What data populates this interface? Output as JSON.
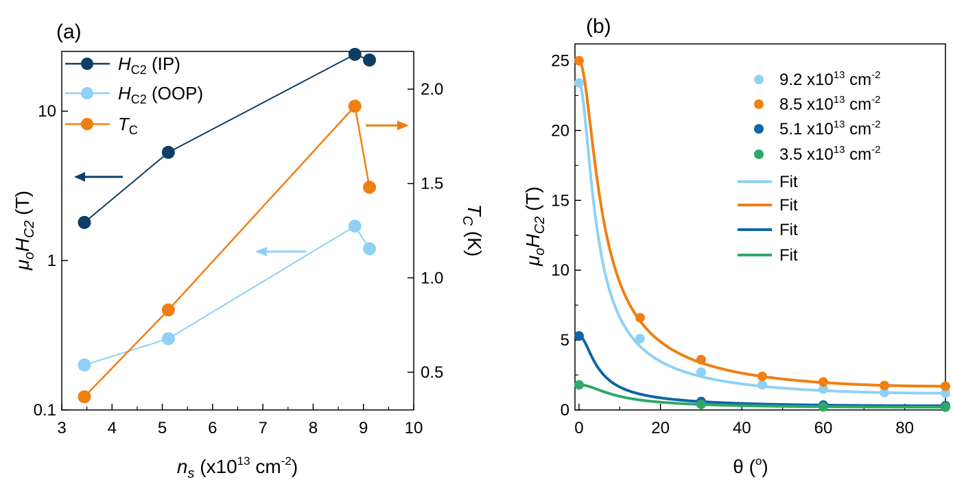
{
  "colors": {
    "ip": "#0e3d66",
    "oop": "#8fd1f5",
    "tc": "#f07f12",
    "light_blue": "#8fd1f5",
    "orange": "#f07f12",
    "blue": "#0f66a5",
    "green": "#2ea86a"
  },
  "chart_data": [
    {
      "panel_label": "(a)",
      "type": "line",
      "xlabel": {
        "sym": "n",
        "sub": "s",
        "pre": " (x10",
        "sup": "13",
        "mid": " cm",
        "sup2": "-2",
        "post": ")"
      },
      "ylabel_left": {
        "mu": "μ",
        "mu_sub": "o",
        "sym": "H",
        "sub": "C2",
        "post": " (T)"
      },
      "ylabel_right": {
        "sym": "T",
        "sub": "C",
        "post": " (K)"
      },
      "xlim": [
        3,
        10
      ],
      "ylim_left": [
        0.1,
        25.12
      ],
      "yscale_left": "log",
      "ylim_right": [
        0.3,
        2.2
      ],
      "x_ticks": [
        "3",
        "4",
        "5",
        "6",
        "7",
        "8",
        "9",
        "10"
      ],
      "y_ticks_left": [
        "0.1",
        "1",
        "10"
      ],
      "y_ticks_right": [
        "0.5",
        "1.0",
        "1.5",
        "2.0"
      ],
      "series": [
        {
          "name": "H_C2 (IP)",
          "legend": {
            "sym": "H",
            "sub": "C2",
            "rest": " (IP)"
          },
          "axis": "left",
          "x": [
            3.45,
            5.12,
            8.83,
            9.12
          ],
          "y": [
            1.8,
            5.3,
            24.0,
            22.0
          ]
        },
        {
          "name": "H_C2 (OOP)",
          "legend": {
            "sym": "H",
            "sub": "C2",
            "rest": " (OOP)"
          },
          "axis": "left",
          "x": [
            3.45,
            5.12,
            8.83,
            9.12
          ],
          "y": [
            0.2,
            0.3,
            1.7,
            1.2
          ]
        },
        {
          "name": "T_C",
          "legend": {
            "sym": "T",
            "sub": "C",
            "rest": ""
          },
          "axis": "right",
          "x": [
            3.45,
            5.12,
            8.83,
            9.12
          ],
          "y": [
            0.37,
            0.83,
            1.91,
            1.48
          ]
        }
      ],
      "annotations": [
        "arrow-left pointing to left axis for H_C2 (IP)",
        "arrow-left pointing to left axis for H_C2 (OOP)",
        "arrow-right pointing to right axis for T_C"
      ]
    },
    {
      "panel_label": "(b)",
      "type": "scatter",
      "xlabel": {
        "sym": "θ",
        "pre": " (",
        "sup": "o",
        "post": ")"
      },
      "ylabel": {
        "mu": "μ",
        "mu_sub": "o",
        "sym": "H",
        "sub": "C2",
        "post": " (T)"
      },
      "xlim": [
        -1,
        90
      ],
      "ylim": [
        0,
        26.2
      ],
      "x_ticks": [
        "0",
        "20",
        "40",
        "60",
        "80"
      ],
      "y_ticks": [
        "0",
        "5",
        "10",
        "15",
        "20",
        "25"
      ],
      "series": [
        {
          "name": "9.2 x10^13 cm^-2",
          "legend": {
            "pre": "9.2 x10",
            "sup": "13",
            "mid": " cm",
            "sup2": "-2"
          },
          "color_key": "light_blue",
          "x": [
            0,
            15,
            30,
            45,
            60,
            75,
            90
          ],
          "y": [
            23.4,
            5.1,
            2.7,
            1.8,
            1.5,
            1.25,
            1.2
          ],
          "fit": {
            "Hpar": 23.4,
            "Hperp": 1.2
          }
        },
        {
          "name": "8.5 x10^13 cm^-2",
          "legend": {
            "pre": "8.5 x10",
            "sup": "13",
            "mid": " cm",
            "sup2": "-2"
          },
          "color_key": "orange",
          "x": [
            0,
            15,
            30,
            45,
            60,
            75,
            90
          ],
          "y": [
            25.0,
            6.6,
            3.6,
            2.4,
            2.0,
            1.75,
            1.7
          ],
          "fit": {
            "Hpar": 25.0,
            "Hperp": 1.7
          }
        },
        {
          "name": "5.1 x10^13 cm^-2",
          "legend": {
            "pre": "5.1 x10",
            "sup": "13",
            "mid": " cm",
            "sup2": "-2"
          },
          "color_key": "blue",
          "x": [
            0,
            30,
            60,
            90
          ],
          "y": [
            5.3,
            0.6,
            0.35,
            0.3
          ],
          "fit": {
            "Hpar": 5.3,
            "Hperp": 0.3
          }
        },
        {
          "name": "3.5 x10^13 cm^-2",
          "legend": {
            "pre": "3.5 x10",
            "sup": "13",
            "mid": " cm",
            "sup2": "-2"
          },
          "color_key": "green",
          "x": [
            0,
            30,
            60,
            90
          ],
          "y": [
            1.8,
            0.4,
            0.22,
            0.2
          ],
          "fit": {
            "Hpar": 1.8,
            "Hperp": 0.2
          }
        }
      ],
      "fit_label": "Fit"
    }
  ]
}
